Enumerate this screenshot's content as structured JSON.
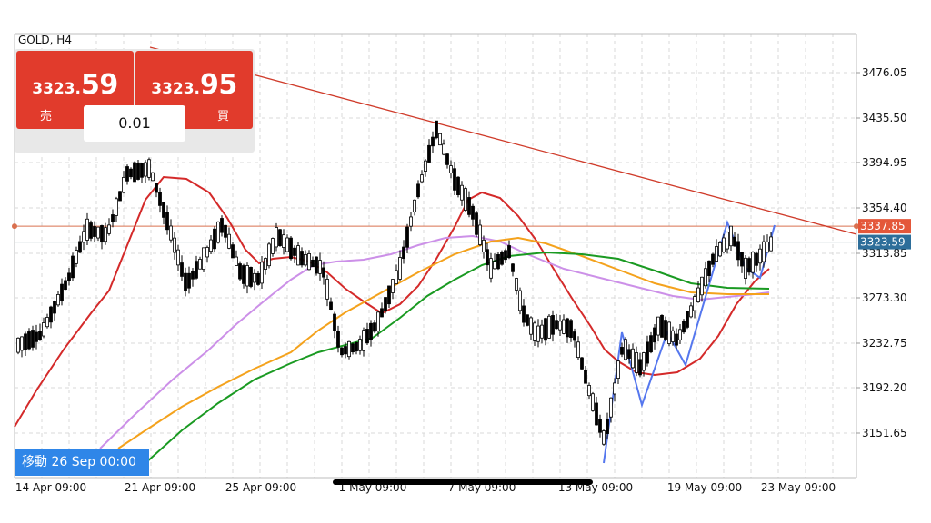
{
  "symbol": "GOLD, H4",
  "trade_panel": {
    "sell": {
      "price_prefix": "3323.",
      "price_suffix": "59",
      "label": "売"
    },
    "buy": {
      "price_prefix": "3323.",
      "price_suffix": "95",
      "label": "買"
    },
    "lot": "0.01"
  },
  "move_badge": "移動 26 Sep 00:00",
  "colors": {
    "bull": "#ffffff",
    "bear": "#000000",
    "grid": "#d8d8d8",
    "ma_red": "#d42a2a",
    "ma_violet": "#cc90e8",
    "ma_orange": "#f4a21c",
    "ma_green": "#1a9a22",
    "trendline": "#cf3b2a",
    "zigzag": "#5577ee",
    "price_line_red": "#d9704f",
    "price_line_grey": "#8aa0a8",
    "sell_button": "#e13b2c",
    "move_badge": "#2f86e8"
  },
  "chart_data": {
    "type": "candlestick",
    "y_ticks": [
      "3476.05",
      "3435.50",
      "3394.95",
      "3354.40",
      "3313.85",
      "3273.30",
      "3232.75",
      "3192.20",
      "3151.65"
    ],
    "x_ticks": [
      "14 Apr 09:00",
      "21 Apr 09:00",
      "25 Apr 09:00",
      "1 May 09:00",
      "7 May 09:00",
      "13 May 09:00",
      "19 May 09:00",
      "23 May 09:00"
    ],
    "ylim": [
      3115,
      3503
    ],
    "price_labels": [
      {
        "value": "3337.85",
        "color": "#e4573a"
      },
      {
        "value": "3323.59",
        "color": "#2d6e9a"
      }
    ],
    "grid": true
  }
}
